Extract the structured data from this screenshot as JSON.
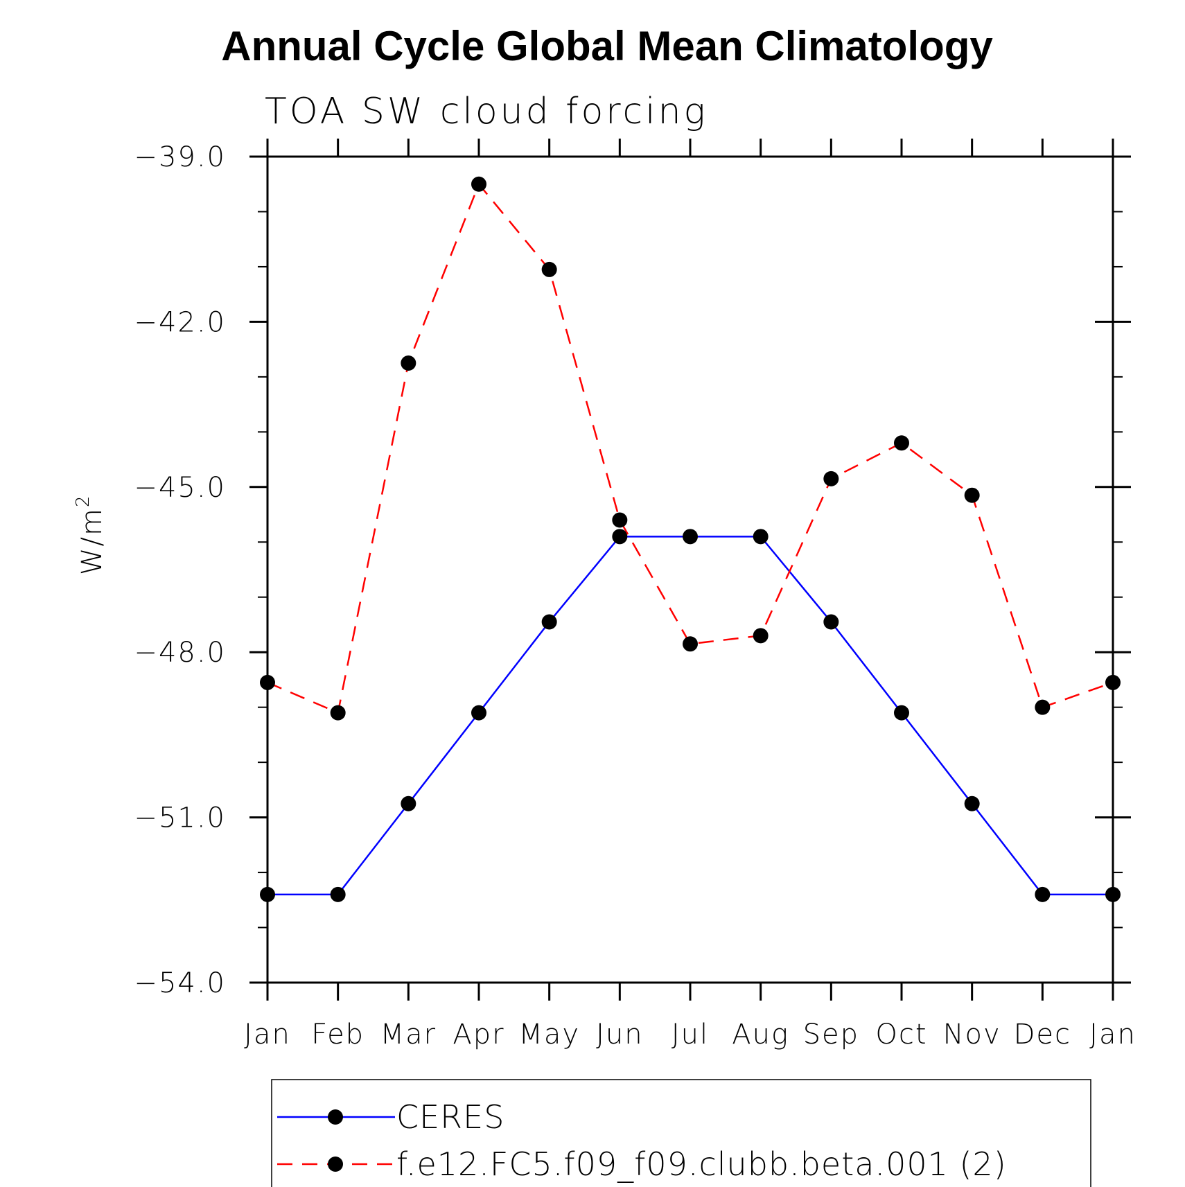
{
  "chart_data": {
    "type": "line",
    "title": "Annual Cycle Global Mean Climatology",
    "subtitle": "TOA SW cloud forcing",
    "ylabel": "W/m",
    "ylabel_superscript": "2",
    "categories": [
      "Jan",
      "Feb",
      "Mar",
      "Apr",
      "May",
      "Jun",
      "Jul",
      "Aug",
      "Sep",
      "Oct",
      "Nov",
      "Dec",
      "Jan"
    ],
    "ylim": [
      -54.0,
      -39.0
    ],
    "yticks": [
      -39.0,
      -42.0,
      -45.0,
      -48.0,
      -51.0,
      -54.0
    ],
    "ytick_labels": [
      "−39.0",
      "−42.0",
      "−45.0",
      "−48.0",
      "−51.0",
      "−54.0"
    ],
    "grid": false,
    "legend_position": "bottom",
    "series": [
      {
        "name": "CERES",
        "color": "#0000ff",
        "line_style": "solid",
        "values": [
          -52.4,
          -52.4,
          -50.75,
          -49.1,
          -47.45,
          -45.9,
          -45.9,
          -45.9,
          -47.45,
          -49.1,
          -50.75,
          -52.4,
          -52.4
        ]
      },
      {
        "name": "f.e12.FC5.f09_f09.clubb.beta.001 (2)",
        "color": "#ff0000",
        "line_style": "dashed",
        "values": [
          -48.55,
          -49.1,
          -42.75,
          -39.5,
          -41.05,
          -45.6,
          -47.85,
          -47.7,
          -44.85,
          -44.2,
          -45.15,
          -49.0,
          -48.55
        ]
      }
    ]
  }
}
